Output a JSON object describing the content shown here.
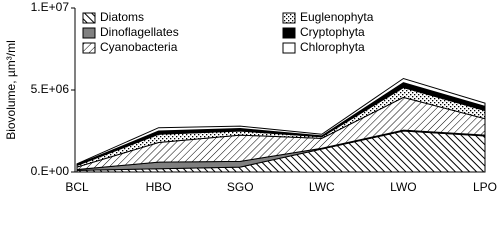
{
  "chart_data": {
    "type": "stacked-area",
    "y_label": "Biovolume, µm³/ml",
    "categories": [
      "BCL",
      "HBO",
      "SGO",
      "LWC",
      "LWO",
      "LPO"
    ],
    "ylim": [
      0,
      10000000
    ],
    "yticks": [
      {
        "value": 0,
        "label": "0.E+00"
      },
      {
        "value": 5000000,
        "label": "5.E+06"
      },
      {
        "value": 10000000,
        "label": "1.E+07"
      }
    ],
    "legend": "top-left",
    "series": [
      {
        "name": "Diatoms",
        "pattern": "hatch-back",
        "color": "#000000",
        "values": [
          100000,
          200000,
          300000,
          1400000,
          2500000,
          2200000
        ]
      },
      {
        "name": "Dinoflagellates",
        "pattern": "solid",
        "color": "#808080",
        "values": [
          50000,
          400000,
          350000,
          50000,
          50000,
          50000
        ]
      },
      {
        "name": "Cyanobacteria",
        "pattern": "hatch-fwd",
        "color": "#000000",
        "values": [
          150000,
          1200000,
          1600000,
          600000,
          2000000,
          1000000
        ]
      },
      {
        "name": "Euglenophyta",
        "pattern": "dots",
        "color": "#000000",
        "values": [
          100000,
          500000,
          250000,
          100000,
          600000,
          500000
        ]
      },
      {
        "name": "Cryptophyta",
        "pattern": "solid",
        "color": "#000000",
        "values": [
          50000,
          200000,
          150000,
          50000,
          300000,
          250000
        ]
      },
      {
        "name": "Chlorophyta",
        "pattern": "solid",
        "color": "#ffffff",
        "values": [
          50000,
          200000,
          150000,
          100000,
          250000,
          200000
        ]
      }
    ]
  }
}
